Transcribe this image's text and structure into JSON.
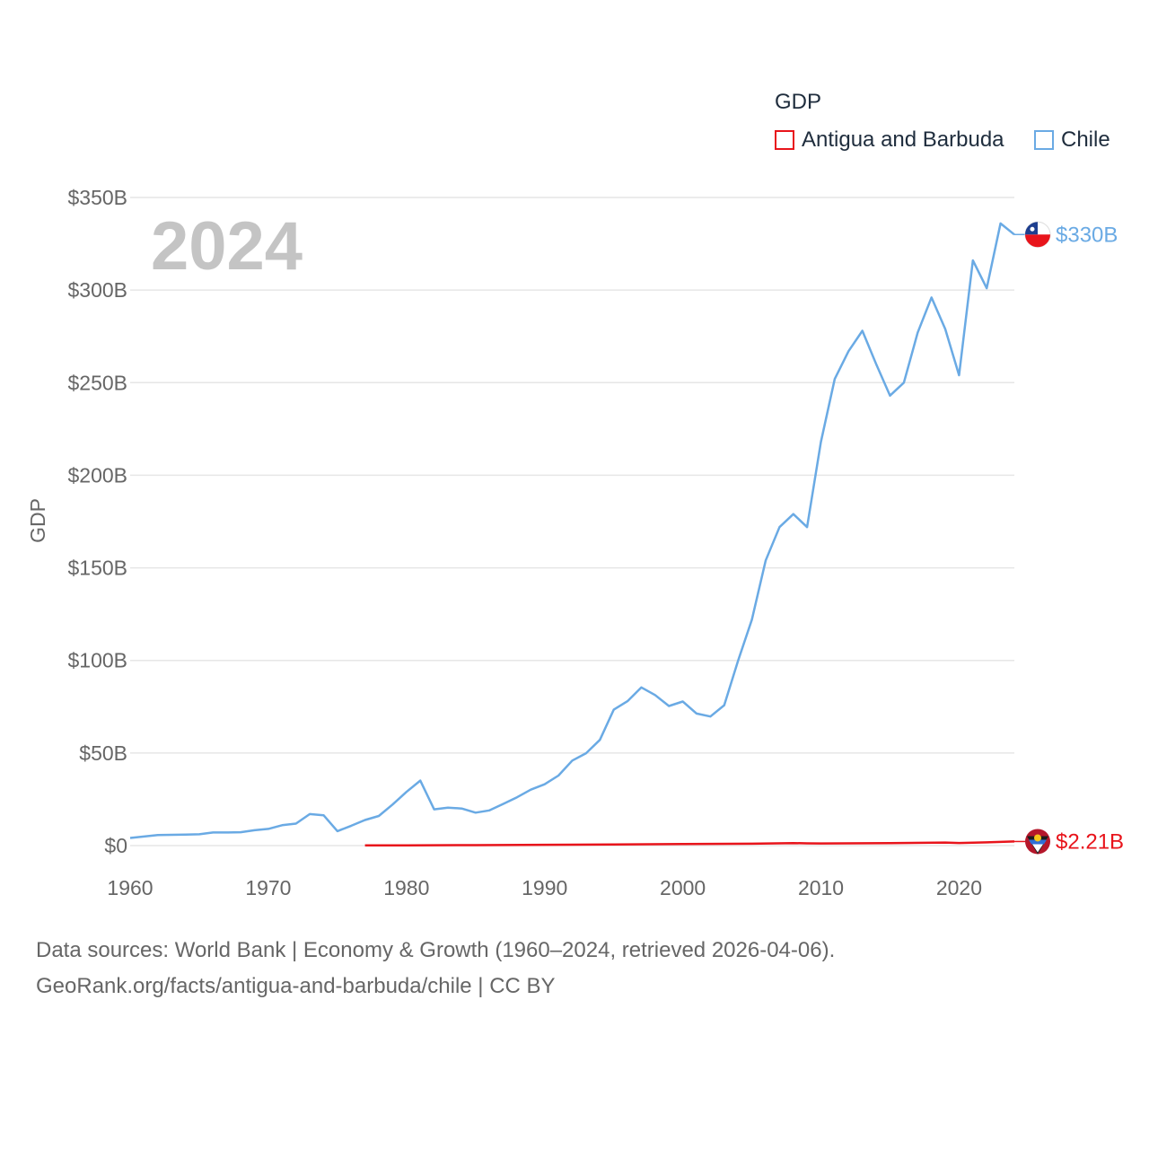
{
  "legend": {
    "title": "GDP",
    "items": [
      {
        "label": "Antigua and Barbuda",
        "color": "#e8141b"
      },
      {
        "label": "Chile",
        "color": "#6aaae4"
      }
    ]
  },
  "footer": {
    "line1": "Data sources: World Bank | Economy & Growth (1960–2024, retrieved 2026-04-06).",
    "line2": "GeoRank.org/facts/antigua-and-barbuda/chile | CC BY"
  },
  "chart_data": {
    "type": "line",
    "title": "GDP",
    "year_label": "2024",
    "xlabel": "",
    "ylabel": "GDP",
    "xlim": [
      1960,
      2024
    ],
    "ylim": [
      0,
      350
    ],
    "unit": "billion USD",
    "x_ticks": [
      1960,
      1970,
      1980,
      1990,
      2000,
      2010,
      2020
    ],
    "y_ticks": [
      0,
      50,
      100,
      150,
      200,
      250,
      300,
      350
    ],
    "y_tick_labels": [
      "$0",
      "$50B",
      "$100B",
      "$150B",
      "$200B",
      "$250B",
      "$300B",
      "$350B"
    ],
    "series": [
      {
        "name": "Chile",
        "color": "#6aaae4",
        "end_label": "$330B",
        "x": [
          1960,
          1961,
          1962,
          1963,
          1964,
          1965,
          1966,
          1967,
          1968,
          1969,
          1970,
          1971,
          1972,
          1973,
          1974,
          1975,
          1976,
          1977,
          1978,
          1979,
          1980,
          1981,
          1982,
          1983,
          1984,
          1985,
          1986,
          1987,
          1988,
          1989,
          1990,
          1991,
          1992,
          1993,
          1994,
          1995,
          1996,
          1997,
          1998,
          1999,
          2000,
          2001,
          2002,
          2003,
          2004,
          2005,
          2006,
          2007,
          2008,
          2009,
          2010,
          2011,
          2012,
          2013,
          2014,
          2015,
          2016,
          2017,
          2018,
          2019,
          2020,
          2021,
          2022,
          2023,
          2024
        ],
        "values": [
          4.1,
          4.9,
          5.7,
          5.8,
          5.9,
          6.1,
          7.1,
          7.1,
          7.2,
          8.3,
          9.0,
          11.0,
          11.9,
          17.0,
          16.4,
          7.8,
          10.7,
          13.8,
          16.0,
          22.2,
          29.0,
          35.1,
          19.6,
          20.5,
          20.0,
          17.8,
          19.0,
          22.5,
          26.1,
          30.2,
          33.1,
          37.8,
          45.9,
          49.9,
          57.1,
          73.4,
          78.0,
          85.4,
          81.3,
          75.4,
          77.8,
          71.3,
          69.7,
          75.8,
          99.8,
          122.0,
          154.0,
          172.0,
          179.0,
          172.0,
          218.0,
          252.0,
          267.0,
          278.0,
          260.0,
          243.0,
          250.0,
          277.0,
          296.0,
          279.0,
          254.0,
          316.0,
          301.0,
          336.0,
          330.0
        ]
      },
      {
        "name": "Antigua and Barbuda",
        "color": "#e8141b",
        "end_label": "$2.21B",
        "x": [
          1977,
          1980,
          1985,
          1990,
          1995,
          2000,
          2005,
          2008,
          2009,
          2010,
          2015,
          2019,
          2020,
          2021,
          2022,
          2023,
          2024
        ],
        "values": [
          0.08,
          0.14,
          0.25,
          0.46,
          0.58,
          0.83,
          1.03,
          1.35,
          1.19,
          1.15,
          1.37,
          1.66,
          1.41,
          1.56,
          1.76,
          2.01,
          2.21
        ]
      }
    ]
  }
}
